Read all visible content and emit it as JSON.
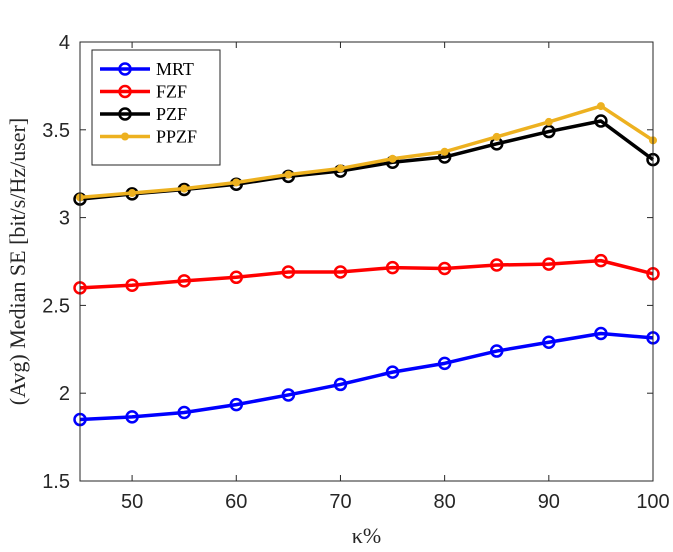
{
  "chart_data": {
    "type": "line",
    "title": "",
    "xlabel": "κ%",
    "ylabel": "(Avg) Median SE [bit/s/Hz/user]",
    "x": [
      45,
      50,
      55,
      60,
      65,
      70,
      75,
      80,
      85,
      90,
      95,
      100
    ],
    "xlim": [
      45,
      100
    ],
    "ylim": [
      1.5,
      4
    ],
    "xticks": [
      50,
      60,
      70,
      80,
      90,
      100
    ],
    "yticks": [
      1.5,
      2,
      2.5,
      3,
      3.5,
      4
    ],
    "xtick_labels": [
      "50",
      "60",
      "70",
      "80",
      "90",
      "100"
    ],
    "ytick_labels": [
      "1.5",
      "2",
      "2.5",
      "3",
      "3.5",
      "4"
    ],
    "grid": false,
    "legend_position": "top-left",
    "series": [
      {
        "name": "MRT",
        "color": "#0000ff",
        "marker": "circle",
        "values": [
          1.85,
          1.865,
          1.89,
          1.935,
          1.99,
          2.05,
          2.12,
          2.17,
          2.24,
          2.29,
          2.34,
          2.315
        ]
      },
      {
        "name": "FZF",
        "color": "#ff0000",
        "marker": "circle",
        "values": [
          2.6,
          2.615,
          2.64,
          2.66,
          2.69,
          2.69,
          2.715,
          2.71,
          2.73,
          2.735,
          2.755,
          2.68
        ]
      },
      {
        "name": "PZF",
        "color": "#000000",
        "marker": "circle",
        "values": [
          3.105,
          3.135,
          3.16,
          3.19,
          3.235,
          3.265,
          3.315,
          3.345,
          3.42,
          3.49,
          3.55,
          3.33
        ]
      },
      {
        "name": "PPZF",
        "color": "#edb120",
        "marker": "dot",
        "values": [
          3.115,
          3.14,
          3.165,
          3.2,
          3.245,
          3.28,
          3.335,
          3.375,
          3.46,
          3.545,
          3.635,
          3.44
        ]
      }
    ]
  }
}
